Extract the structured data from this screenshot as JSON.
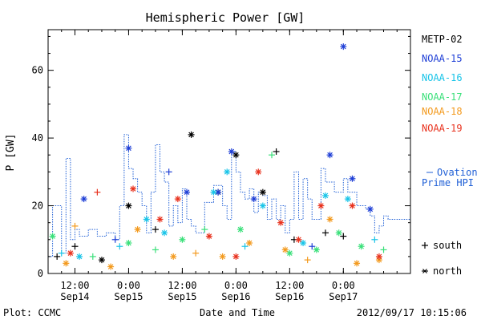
{
  "chart_data": {
    "type": "scatter",
    "title": "Hemispheric Power [GW]",
    "ylabel": "P [GW]",
    "xlabel": "Date and Time",
    "plot_credit": "Plot: CCMC",
    "timestamp": "2012/09/17 10:15:06",
    "ylim": [
      0,
      72
    ],
    "y_ticks": [
      0,
      20,
      40,
      60
    ],
    "y_minor_step": 5,
    "xlim": [
      "2012-09-14 06:00",
      "2012-09-17 15:00"
    ],
    "x_ticks": [
      {
        "t": "2012-09-14 12:00",
        "line1": "12:00",
        "line2": "Sep14"
      },
      {
        "t": "2012-09-15 00:00",
        "line1": "0:00",
        "line2": "Sep15"
      },
      {
        "t": "2012-09-15 12:00",
        "line1": "12:00",
        "line2": "Sep15"
      },
      {
        "t": "2012-09-16 00:00",
        "line1": "0:00",
        "line2": "Sep16"
      },
      {
        "t": "2012-09-16 12:00",
        "line1": "12:00",
        "line2": "Sep16"
      },
      {
        "t": "2012-09-17 00:00",
        "line1": "0:00",
        "line2": "Sep17"
      }
    ],
    "legend": {
      "placement": "right",
      "satellites": [
        {
          "name": "METP-02",
          "color": "#000000"
        },
        {
          "name": "NOAA-15",
          "color": "#1f3fd6"
        },
        {
          "name": "NOAA-16",
          "color": "#18c4e8"
        },
        {
          "name": "NOAA-17",
          "color": "#3ae07a"
        },
        {
          "name": "NOAA-18",
          "color": "#f39a1e"
        },
        {
          "name": "NOAA-19",
          "color": "#e8321e"
        }
      ],
      "model_label_1": "Ovation",
      "model_label_2": "Prime HPI",
      "model_color": "#1f5fd6",
      "south_label": "south",
      "north_label": "north"
    },
    "model_series": {
      "name": "Ovation Prime HPI",
      "points": [
        [
          "2012-09-14 06:00",
          5
        ],
        [
          "2012-09-14 07:00",
          20
        ],
        [
          "2012-09-14 08:00",
          20
        ],
        [
          "2012-09-14 09:00",
          6
        ],
        [
          "2012-09-14 10:00",
          34
        ],
        [
          "2012-09-14 11:00",
          10
        ],
        [
          "2012-09-14 12:00",
          13
        ],
        [
          "2012-09-14 13:00",
          11
        ],
        [
          "2012-09-14 15:00",
          13
        ],
        [
          "2012-09-14 17:00",
          11
        ],
        [
          "2012-09-14 19:00",
          12
        ],
        [
          "2012-09-14 21:00",
          10
        ],
        [
          "2012-09-14 22:00",
          20
        ],
        [
          "2012-09-14 23:00",
          41
        ],
        [
          "2012-09-15 00:00",
          31
        ],
        [
          "2012-09-15 01:00",
          28
        ],
        [
          "2012-09-15 02:00",
          24
        ],
        [
          "2012-09-15 03:00",
          20
        ],
        [
          "2012-09-15 04:00",
          12
        ],
        [
          "2012-09-15 05:00",
          24
        ],
        [
          "2012-09-15 06:00",
          38
        ],
        [
          "2012-09-15 07:00",
          30
        ],
        [
          "2012-09-15 08:00",
          27
        ],
        [
          "2012-09-15 09:00",
          14
        ],
        [
          "2012-09-15 10:00",
          20
        ],
        [
          "2012-09-15 11:00",
          15
        ],
        [
          "2012-09-15 12:00",
          25
        ],
        [
          "2012-09-15 13:00",
          16
        ],
        [
          "2012-09-15 14:00",
          14
        ],
        [
          "2012-09-15 15:00",
          12
        ],
        [
          "2012-09-15 17:00",
          21
        ],
        [
          "2012-09-15 19:00",
          26
        ],
        [
          "2012-09-15 21:00",
          20
        ],
        [
          "2012-09-15 22:00",
          16
        ],
        [
          "2012-09-15 23:00",
          36
        ],
        [
          "2012-09-16 00:00",
          30
        ],
        [
          "2012-09-16 01:00",
          24
        ],
        [
          "2012-09-16 02:00",
          22
        ],
        [
          "2012-09-16 03:00",
          25
        ],
        [
          "2012-09-16 04:00",
          18
        ],
        [
          "2012-09-16 05:00",
          24
        ],
        [
          "2012-09-16 06:00",
          23
        ],
        [
          "2012-09-16 07:00",
          16
        ],
        [
          "2012-09-16 08:00",
          22
        ],
        [
          "2012-09-16 09:00",
          16
        ],
        [
          "2012-09-16 10:00",
          20
        ],
        [
          "2012-09-16 11:00",
          12
        ],
        [
          "2012-09-16 12:00",
          16
        ],
        [
          "2012-09-16 13:00",
          30
        ],
        [
          "2012-09-16 14:00",
          16
        ],
        [
          "2012-09-16 15:00",
          28
        ],
        [
          "2012-09-16 16:00",
          22
        ],
        [
          "2012-09-16 17:00",
          16
        ],
        [
          "2012-09-16 19:00",
          31
        ],
        [
          "2012-09-16 20:00",
          27
        ],
        [
          "2012-09-16 22:00",
          24
        ],
        [
          "2012-09-17 00:00",
          28
        ],
        [
          "2012-09-17 01:00",
          24
        ],
        [
          "2012-09-17 03:00",
          20
        ],
        [
          "2012-09-17 05:00",
          19
        ],
        [
          "2012-09-17 06:00",
          17
        ],
        [
          "2012-09-17 07:00",
          12
        ],
        [
          "2012-09-17 08:00",
          14
        ],
        [
          "2012-09-17 09:00",
          17
        ],
        [
          "2012-09-17 10:00",
          16
        ]
      ]
    },
    "series": [
      {
        "name": "METP-02",
        "color": "#000000",
        "points": [
          [
            "2012-09-14 08:00",
            5,
            "S"
          ],
          [
            "2012-09-14 12:00",
            8,
            "S"
          ],
          [
            "2012-09-14 18:00",
            4,
            "N"
          ],
          [
            "2012-09-15 00:00",
            20,
            "N"
          ],
          [
            "2012-09-15 06:00",
            13,
            "S"
          ],
          [
            "2012-09-15 14:00",
            41,
            "N"
          ],
          [
            "2012-09-15 20:00",
            24,
            "N"
          ],
          [
            "2012-09-16 00:00",
            35,
            "N"
          ],
          [
            "2012-09-16 06:00",
            24,
            "N"
          ],
          [
            "2012-09-16 09:00",
            36,
            "S"
          ],
          [
            "2012-09-16 13:00",
            10,
            "S"
          ],
          [
            "2012-09-16 20:00",
            12,
            "S"
          ],
          [
            "2012-09-17 00:00",
            11,
            "S"
          ]
        ]
      },
      {
        "name": "NOAA-15",
        "color": "#1f3fd6",
        "points": [
          [
            "2012-09-14 14:00",
            22,
            "N"
          ],
          [
            "2012-09-14 21:00",
            10,
            "S"
          ],
          [
            "2012-09-15 00:00",
            37,
            "N"
          ],
          [
            "2012-09-15 09:00",
            30,
            "S"
          ],
          [
            "2012-09-15 13:00",
            24,
            "N"
          ],
          [
            "2012-09-15 20:00",
            24,
            "N"
          ],
          [
            "2012-09-15 23:00",
            36,
            "N"
          ],
          [
            "2012-09-16 04:00",
            22,
            "N"
          ],
          [
            "2012-09-16 17:00",
            8,
            "S"
          ],
          [
            "2012-09-16 21:00",
            35,
            "N"
          ],
          [
            "2012-09-17 00:00",
            67,
            "N"
          ],
          [
            "2012-09-17 02:00",
            28,
            "N"
          ],
          [
            "2012-09-17 06:00",
            19,
            "N"
          ]
        ]
      },
      {
        "name": "NOAA-16",
        "color": "#18c4e8",
        "points": [
          [
            "2012-09-14 09:00",
            6,
            "S"
          ],
          [
            "2012-09-14 13:00",
            5,
            "N"
          ],
          [
            "2012-09-14 22:00",
            8,
            "S"
          ],
          [
            "2012-09-15 04:00",
            16,
            "N"
          ],
          [
            "2012-09-15 08:00",
            12,
            "N"
          ],
          [
            "2012-09-15 19:00",
            24,
            "N"
          ],
          [
            "2012-09-15 22:00",
            30,
            "N"
          ],
          [
            "2012-09-16 02:00",
            8,
            "S"
          ],
          [
            "2012-09-16 06:00",
            20,
            "N"
          ],
          [
            "2012-09-16 15:00",
            9,
            "N"
          ],
          [
            "2012-09-16 20:00",
            23,
            "N"
          ],
          [
            "2012-09-17 01:00",
            22,
            "N"
          ],
          [
            "2012-09-17 07:00",
            10,
            "S"
          ]
        ]
      },
      {
        "name": "NOAA-17",
        "color": "#3ae07a",
        "points": [
          [
            "2012-09-14 07:00",
            11,
            "N"
          ],
          [
            "2012-09-14 16:00",
            5,
            "S"
          ],
          [
            "2012-09-15 00:00",
            9,
            "N"
          ],
          [
            "2012-09-15 06:00",
            7,
            "S"
          ],
          [
            "2012-09-15 12:00",
            10,
            "N"
          ],
          [
            "2012-09-15 17:00",
            13,
            "S"
          ],
          [
            "2012-09-16 01:00",
            13,
            "N"
          ],
          [
            "2012-09-16 08:00",
            35,
            "S"
          ],
          [
            "2012-09-16 12:00",
            6,
            "N"
          ],
          [
            "2012-09-16 18:00",
            7,
            "N"
          ],
          [
            "2012-09-16 23:00",
            12,
            "N"
          ],
          [
            "2012-09-17 04:00",
            8,
            "N"
          ],
          [
            "2012-09-17 09:00",
            7,
            "S"
          ]
        ]
      },
      {
        "name": "NOAA-18",
        "color": "#f39a1e",
        "points": [
          [
            "2012-09-14 10:00",
            3,
            "N"
          ],
          [
            "2012-09-14 12:00",
            14,
            "S"
          ],
          [
            "2012-09-14 20:00",
            2,
            "N"
          ],
          [
            "2012-09-15 02:00",
            13,
            "N"
          ],
          [
            "2012-09-15 10:00",
            5,
            "N"
          ],
          [
            "2012-09-15 15:00",
            6,
            "S"
          ],
          [
            "2012-09-15 21:00",
            5,
            "N"
          ],
          [
            "2012-09-16 03:00",
            9,
            "N"
          ],
          [
            "2012-09-16 11:00",
            7,
            "N"
          ],
          [
            "2012-09-16 16:00",
            4,
            "S"
          ],
          [
            "2012-09-16 21:00",
            16,
            "N"
          ],
          [
            "2012-09-17 03:00",
            3,
            "N"
          ],
          [
            "2012-09-17 08:00",
            4,
            "N"
          ]
        ]
      },
      {
        "name": "NOAA-19",
        "color": "#e8321e",
        "points": [
          [
            "2012-09-14 11:00",
            6,
            "N"
          ],
          [
            "2012-09-14 17:00",
            24,
            "S"
          ],
          [
            "2012-09-15 01:00",
            25,
            "N"
          ],
          [
            "2012-09-15 07:00",
            16,
            "N"
          ],
          [
            "2012-09-15 11:00",
            22,
            "N"
          ],
          [
            "2012-09-15 18:00",
            11,
            "N"
          ],
          [
            "2012-09-16 00:00",
            5,
            "N"
          ],
          [
            "2012-09-16 05:00",
            30,
            "N"
          ],
          [
            "2012-09-16 10:00",
            15,
            "N"
          ],
          [
            "2012-09-16 14:00",
            10,
            "N"
          ],
          [
            "2012-09-16 19:00",
            20,
            "N"
          ],
          [
            "2012-09-17 02:00",
            20,
            "N"
          ],
          [
            "2012-09-17 08:00",
            5,
            "N"
          ]
        ]
      }
    ]
  }
}
